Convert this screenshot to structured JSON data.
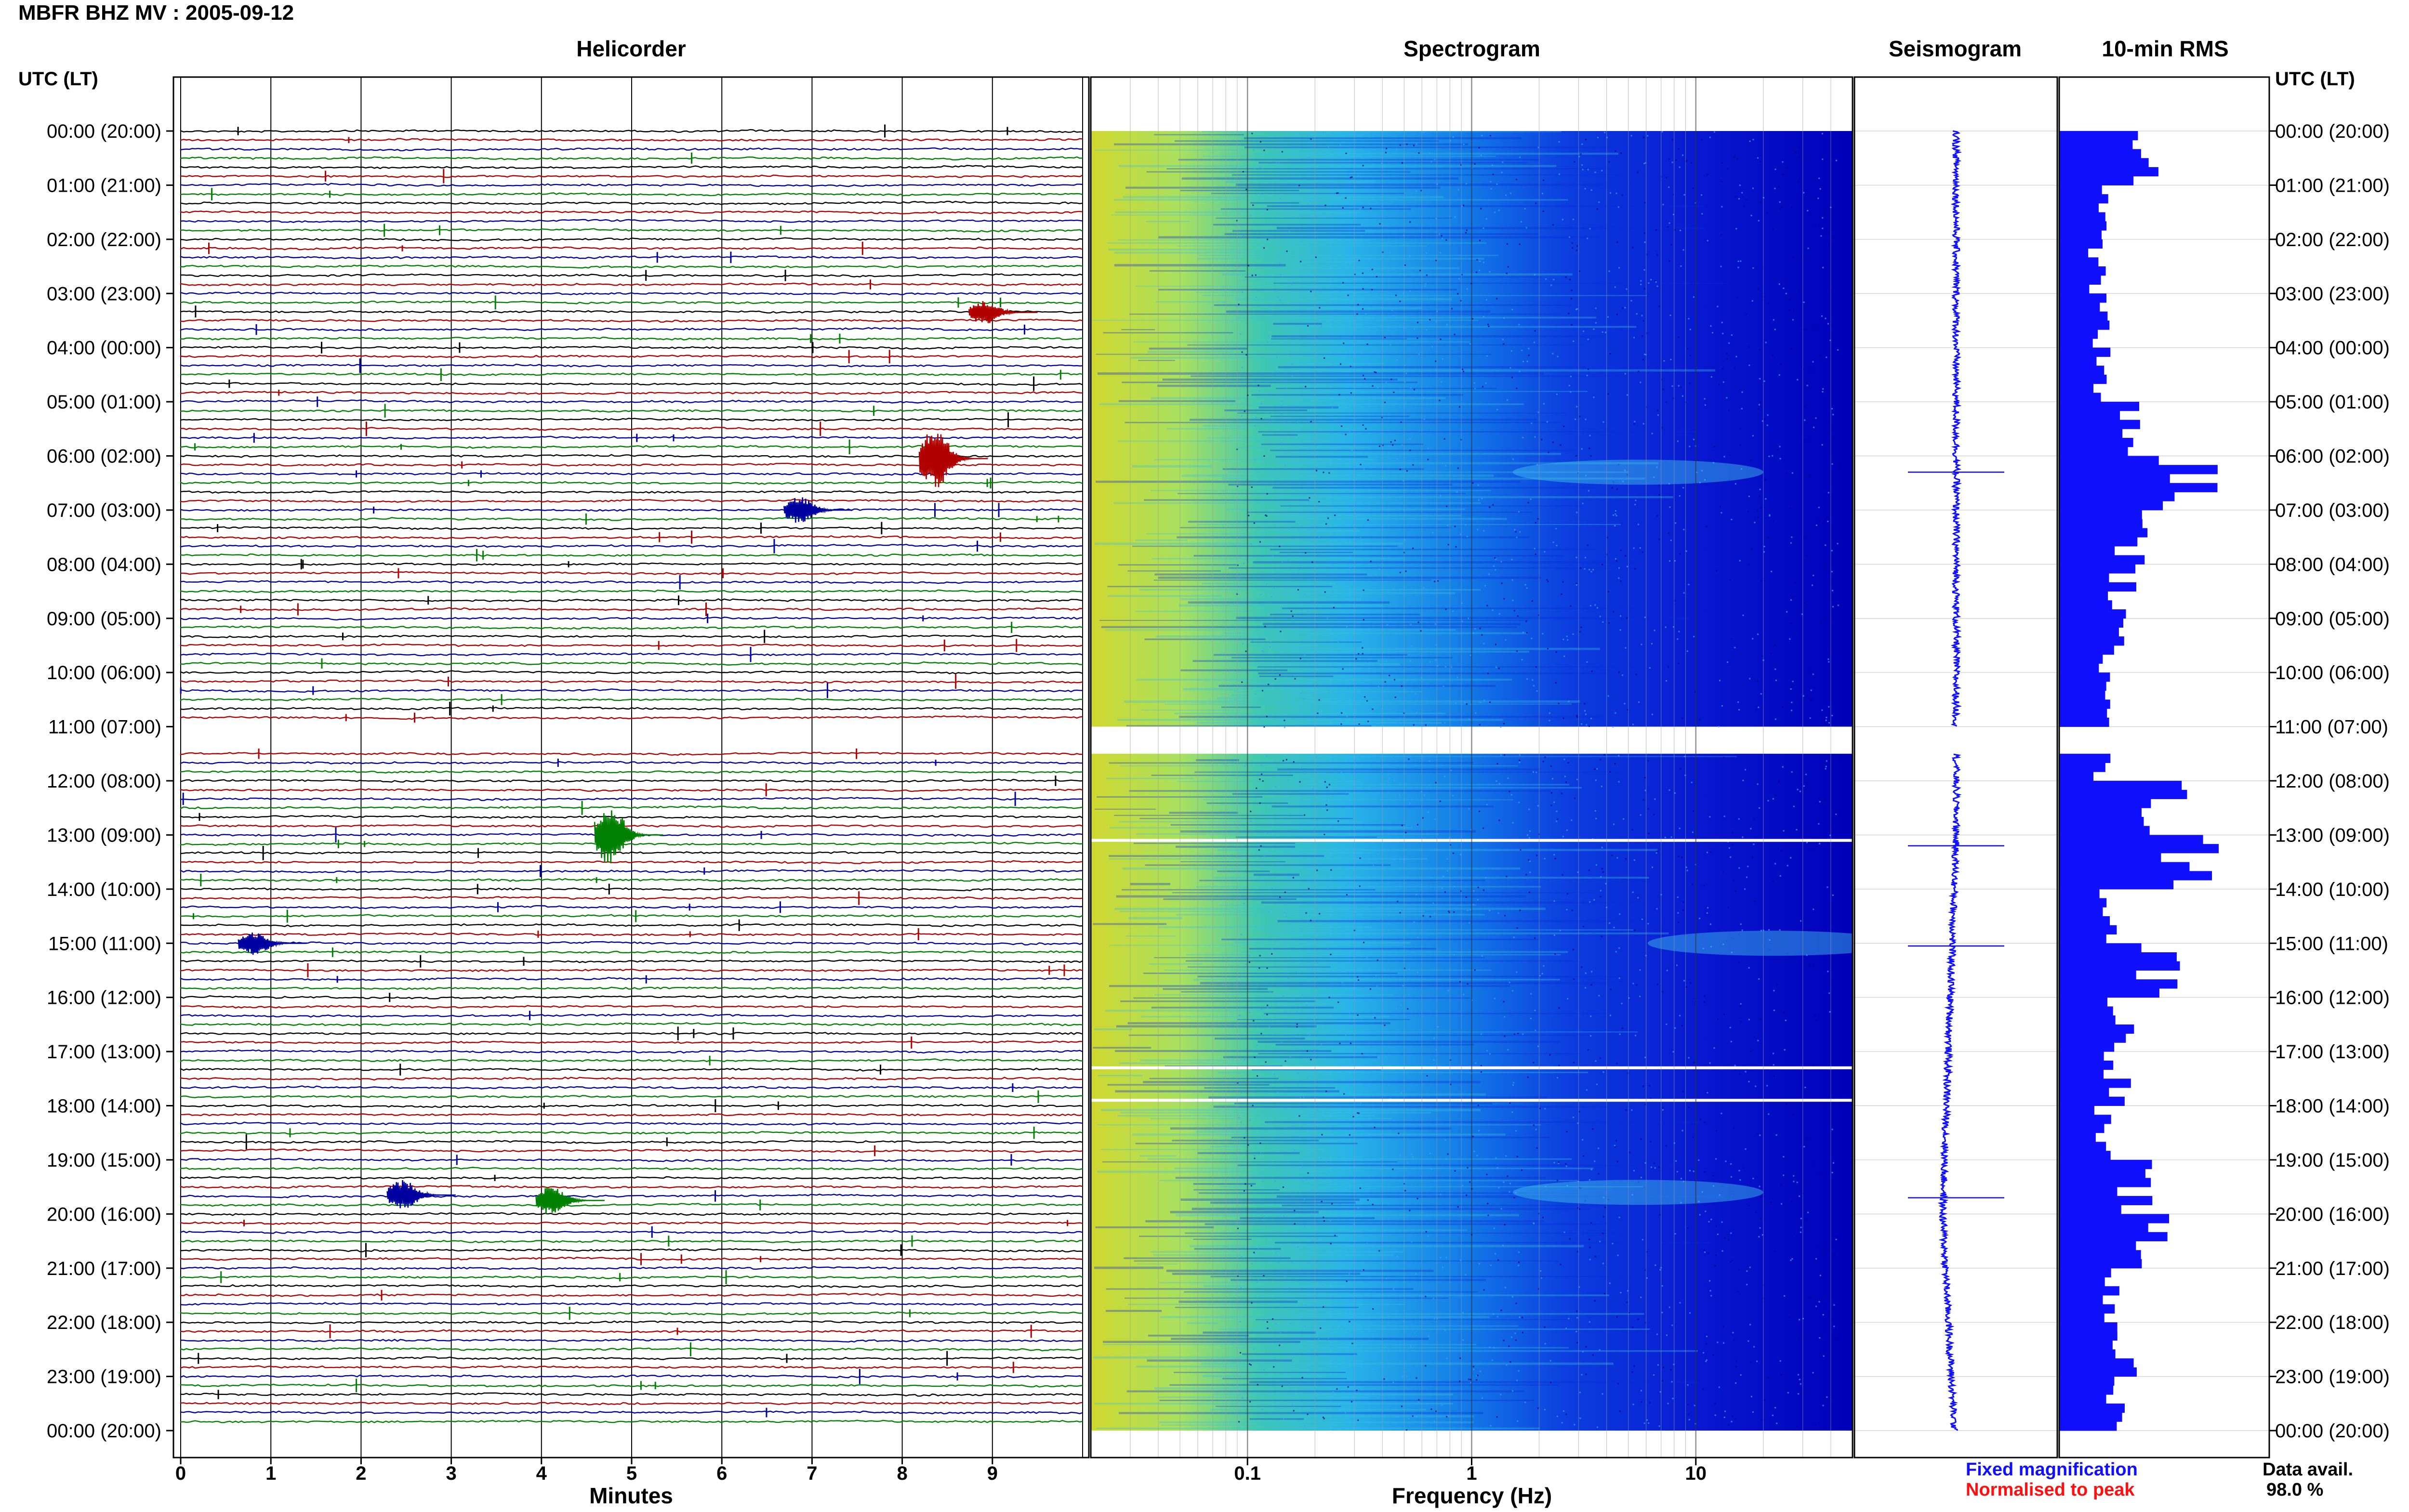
{
  "header": {
    "title": "MBFR BHZ MV : 2005-09-12",
    "utc_left": "UTC (LT)",
    "utc_right": "UTC (LT)"
  },
  "panels": {
    "helicorder": "Helicorder",
    "spectrogram": "Spectrogram",
    "seismogram": "Seismogram",
    "rms": "10-min RMS"
  },
  "axes": {
    "minutes_label": "Minutes",
    "frequency_label": "Frequency (Hz)"
  },
  "legend": {
    "fixed_magnification": "Fixed magnification",
    "normalised_to_peak": "Normalised to peak",
    "fixed_color": "#1010ff",
    "normalised_color": "#ff1010"
  },
  "availability": {
    "label": "Data avail.",
    "value": "98.0 %"
  },
  "colors": {
    "trace_cycle": [
      "#000000",
      "#b00000",
      "#0000a0",
      "#008000"
    ],
    "spectrogram_high": "#d8d820",
    "spectrogram_mid": "#20c0e0",
    "spectrogram_low": "#0000c8",
    "rms_bar": "#1010ff",
    "seismogram": "#1010ff"
  },
  "chart_data": [
    {
      "type": "line",
      "name": "helicorder",
      "xlabel": "Minutes",
      "xlim": [
        0,
        10
      ],
      "x_ticks": [
        "0",
        "1",
        "2",
        "3",
        "4",
        "5",
        "6",
        "7",
        "8",
        "9"
      ],
      "time_labels": [
        "00:00 (20:00)",
        "01:00 (21:00)",
        "02:00 (22:00)",
        "03:00 (23:00)",
        "04:00 (00:00)",
        "05:00 (01:00)",
        "06:00 (02:00)",
        "07:00 (03:00)",
        "08:00 (04:00)",
        "09:00 (05:00)",
        "10:00 (06:00)",
        "11:00 (07:00)",
        "12:00 (08:00)",
        "13:00 (09:00)",
        "14:00 (10:00)",
        "15:00 (11:00)",
        "16:00 (12:00)",
        "17:00 (13:00)",
        "18:00 (14:00)",
        "19:00 (15:00)",
        "20:00 (16:00)",
        "21:00 (17:00)",
        "22:00 (18:00)",
        "23:00 (19:00)",
        "00:00 (20:00)"
      ],
      "rows": 144,
      "gaps_hours": [
        [
          11.0,
          11.5
        ]
      ],
      "events": [
        {
          "hour": 6.05,
          "minute": 8.35,
          "amplitude": 0.9,
          "color": "#b00000"
        },
        {
          "hour": 13.0,
          "minute": 4.75,
          "amplitude": 0.9,
          "color": "#008000"
        },
        {
          "hour": 15.0,
          "minute": 0.8,
          "amplitude": 0.35,
          "color": "#0000a0"
        },
        {
          "hour": 19.75,
          "minute": 4.1,
          "amplitude": 0.45,
          "color": "#008000"
        },
        {
          "hour": 19.65,
          "minute": 2.45,
          "amplitude": 0.45,
          "color": "#0000a0"
        },
        {
          "hour": 7.0,
          "minute": 6.85,
          "amplitude": 0.4,
          "color": "#0000a0"
        },
        {
          "hour": 3.35,
          "minute": 8.9,
          "amplitude": 0.35,
          "color": "#b00000"
        }
      ]
    },
    {
      "type": "heatmap",
      "name": "spectrogram",
      "xlabel": "Frequency (Hz)",
      "x_scale": "log",
      "xlim": [
        0.02,
        50
      ],
      "x_ticks": [
        "0.1",
        "1",
        "10"
      ],
      "gaps_hours": [
        [
          11.0,
          11.5
        ]
      ],
      "white_lines_hours": [
        13.1,
        17.3,
        17.9
      ]
    },
    {
      "type": "line",
      "name": "seismogram",
      "spike_hours": [
        6.3,
        13.2,
        15.05,
        19.7
      ]
    },
    {
      "type": "bar",
      "name": "10-min RMS",
      "orientation": "horizontal",
      "hourly_values": [
        0.45,
        0.22,
        0.18,
        0.2,
        0.2,
        0.32,
        0.62,
        0.35,
        0.3,
        0.25,
        0.28,
        0.0,
        0.5,
        0.62,
        0.25,
        0.48,
        0.3,
        0.28,
        0.2,
        0.36,
        0.42,
        0.25,
        0.3,
        0.27,
        0.3
      ]
    }
  ]
}
